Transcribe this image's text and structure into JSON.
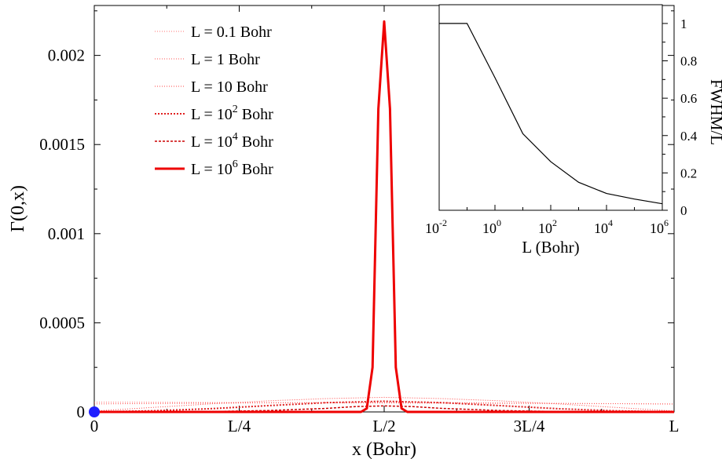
{
  "chart_data": [
    {
      "type": "line",
      "xlabel": "x (Bohr)",
      "ylabel": "Γ(0,x)",
      "xlim": [
        0,
        1
      ],
      "ylim": [
        0,
        0.00228
      ],
      "xticks": [
        {
          "value": 0,
          "label": "0"
        },
        {
          "value": 0.25,
          "label": "L/4"
        },
        {
          "value": 0.5,
          "label": "L/2"
        },
        {
          "value": 0.75,
          "label": "3L/4"
        },
        {
          "value": 1,
          "label": "L"
        }
      ],
      "yticks": [
        {
          "value": 0,
          "label": "0"
        },
        {
          "value": 0.0005,
          "label": "0.0005"
        },
        {
          "value": 0.001,
          "label": "0.001"
        },
        {
          "value": 0.0015,
          "label": "0.0015"
        },
        {
          "value": 0.002,
          "label": "0.002"
        }
      ],
      "marker_at_origin": {
        "x": 0,
        "y": 0,
        "color": "#1f1fff"
      },
      "legend_position": "top-left",
      "series": [
        {
          "name": "L = 0.1 Bohr",
          "label_main": "L = 0.1 Bohr",
          "label_sup": "",
          "label_suffix": "",
          "color": "#ff7070",
          "style": "dotted",
          "x": [
            0,
            0.1,
            0.2,
            0.3,
            0.4,
            0.5,
            0.6,
            0.7,
            0.8,
            0.9,
            1.0
          ],
          "y": [
            5.5e-05,
            5.4e-05,
            5.3e-05,
            5.2e-05,
            5.1e-05,
            5e-05,
            4.9e-05,
            4.8e-05,
            4.7e-05,
            4.6e-05,
            4.5e-05
          ]
        },
        {
          "name": "L = 1 Bohr",
          "label_main": "L = 1 Bohr",
          "label_sup": "",
          "label_suffix": "",
          "color": "#ff5050",
          "style": "dotted",
          "x": [
            0,
            0.1,
            0.2,
            0.3,
            0.4,
            0.5,
            0.6,
            0.7,
            0.8,
            0.9,
            1.0
          ],
          "y": [
            4.5e-05,
            4.7e-05,
            4.9e-05,
            5.1e-05,
            5.2e-05,
            5.3e-05,
            5.2e-05,
            5e-05,
            4.8e-05,
            4.6e-05,
            4.4e-05
          ]
        },
        {
          "name": "L = 10 Bohr",
          "label_main": "L = 10 Bohr",
          "label_sup": "",
          "label_suffix": "",
          "color": "#ff4040",
          "style": "dotted",
          "x": [
            0,
            0.1,
            0.2,
            0.3,
            0.4,
            0.5,
            0.6,
            0.7,
            0.8,
            0.9,
            1.0
          ],
          "y": [
            5e-06,
            2.5e-05,
            4.5e-05,
            6.2e-05,
            7.5e-05,
            8.2e-05,
            7.5e-05,
            6.2e-05,
            4.5e-05,
            2.5e-05,
            5e-06
          ]
        },
        {
          "name": "L = 10^2 Bohr",
          "label_main": "L = 10",
          "label_sup": "2",
          "label_suffix": " Bohr",
          "color": "#e02020",
          "style": "dotted-heavy",
          "x": [
            0,
            0.1,
            0.2,
            0.3,
            0.4,
            0.5,
            0.6,
            0.7,
            0.8,
            0.9,
            1.0
          ],
          "y": [
            0.0,
            6e-06,
            1.8e-05,
            3.5e-05,
            5.2e-05,
            6e-05,
            5.2e-05,
            3.5e-05,
            1.8e-05,
            6e-06,
            0.0
          ]
        },
        {
          "name": "L = 10^4 Bohr",
          "label_main": "L = 10",
          "label_sup": "4",
          "label_suffix": " Bohr",
          "color": "#cc0000",
          "style": "dashed",
          "x": [
            0,
            0.1,
            0.2,
            0.3,
            0.4,
            0.45,
            0.5,
            0.55,
            0.6,
            0.7,
            0.8,
            0.9,
            1.0
          ],
          "y": [
            0.0,
            0.0,
            2e-06,
            8e-06,
            2e-05,
            3e-05,
            3.4e-05,
            3e-05,
            2e-05,
            8e-06,
            2e-06,
            0.0,
            0.0
          ]
        },
        {
          "name": "L = 10^6 Bohr",
          "label_main": "L = 10",
          "label_sup": "6",
          "label_suffix": " Bohr",
          "color": "#ee0000",
          "style": "solid",
          "x": [
            0,
            0.4,
            0.46,
            0.47,
            0.48,
            0.49,
            0.5,
            0.51,
            0.52,
            0.53,
            0.54,
            0.6,
            1.0
          ],
          "y": [
            0.0,
            0.0,
            0.0,
            2e-05,
            0.00025,
            0.0017,
            0.00219,
            0.0017,
            0.00025,
            2e-05,
            0.0,
            0.0,
            0.0
          ]
        }
      ]
    },
    {
      "type": "line",
      "role": "inset",
      "xlabel": "L (Bohr)",
      "ylabel": "FWHM/L",
      "xscale": "log",
      "xlim": [
        0.01,
        1000000
      ],
      "ylim": [
        0,
        1.05
      ],
      "xticks": [
        {
          "value": 0.01,
          "base": "10",
          "exp": "-2"
        },
        {
          "value": 1,
          "base": "10",
          "exp": "0"
        },
        {
          "value": 100,
          "base": "10",
          "exp": "2"
        },
        {
          "value": 10000,
          "base": "10",
          "exp": "4"
        },
        {
          "value": 1000000,
          "base": "10",
          "exp": "6"
        }
      ],
      "yticks": [
        {
          "value": 0,
          "label": "0"
        },
        {
          "value": 0.2,
          "label": "0.2"
        },
        {
          "value": 0.4,
          "label": "0.4"
        },
        {
          "value": 0.6,
          "label": "0.6"
        },
        {
          "value": 0.8,
          "label": "0.8"
        },
        {
          "value": 1,
          "label": "1"
        }
      ],
      "series": [
        {
          "color": "#000000",
          "x": [
            0.01,
            0.1,
            1,
            10,
            100,
            1000,
            10000,
            100000,
            1000000
          ],
          "y": [
            1.0,
            1.0,
            0.71,
            0.41,
            0.26,
            0.15,
            0.09,
            0.06,
            0.035
          ]
        }
      ]
    }
  ]
}
